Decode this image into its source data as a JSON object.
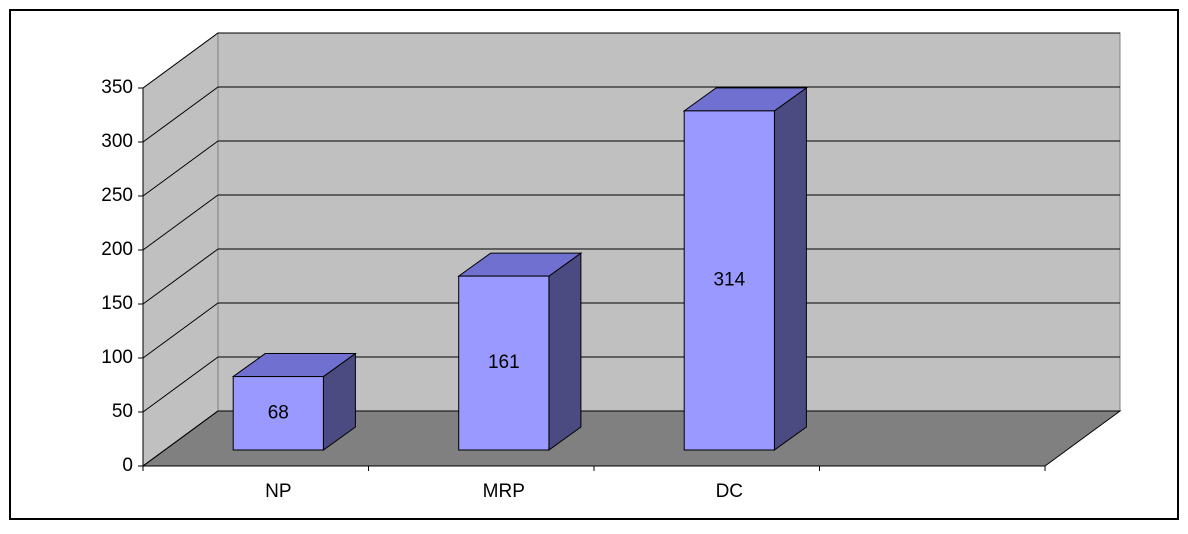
{
  "chart_data": {
    "type": "bar3d",
    "categories": [
      "NP",
      "MRP",
      "DC",
      null
    ],
    "values": [
      68,
      161,
      314,
      null
    ],
    "colors": {
      "front": "#9999ff",
      "top": "#7070d0",
      "side": "#4b4b82",
      "wall": "#c0c0c0",
      "floor": "#808080"
    },
    "ylim": [
      0,
      350
    ],
    "yticks": [
      0,
      50,
      100,
      150,
      200,
      250,
      300,
      350
    ],
    "grid": true
  }
}
